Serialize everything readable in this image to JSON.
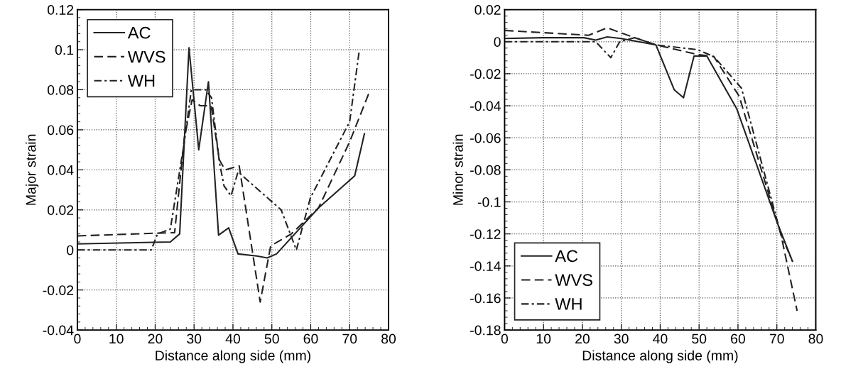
{
  "chart_data": [
    {
      "type": "line",
      "xlabel": "Distance along side (mm)",
      "ylabel": "Major strain",
      "xlim": [
        0,
        80
      ],
      "xticks": [
        0,
        10,
        20,
        30,
        40,
        50,
        60,
        70,
        80
      ],
      "ylim": [
        -0.04,
        0.12
      ],
      "yticks": [
        -0.04,
        -0.02,
        0,
        0.02,
        0.04,
        0.06,
        0.08,
        {
          "value": 0.1,
          "label": "0.1"
        },
        0.12
      ],
      "grid": true,
      "legend": "top left",
      "series": [
        {
          "name": "AC",
          "color": "#222222",
          "line_style": "solid",
          "x": [
            0,
            23.9,
            26.3,
            28.7,
            31.2,
            33.7,
            36.3,
            38.9,
            41.3,
            46.1,
            48.8,
            51.2,
            62,
            71.3,
            73.8
          ],
          "values": [
            0.003,
            0.004,
            0.008,
            0.101,
            0.05,
            0.084,
            0.0074,
            0.011,
            -0.002,
            -0.003,
            -0.004,
            -0.002,
            0.021,
            0.037,
            0.058
          ]
        },
        {
          "name": "WVS",
          "color": "#222222",
          "line_style": "dashed",
          "x": [
            0,
            23.9,
            25,
            27.5,
            29.5,
            31.6,
            34.4,
            36.5,
            38,
            41.6,
            47,
            49.7,
            55,
            62,
            70,
            74.9
          ],
          "values": [
            0.007,
            0.0086,
            0.0086,
            0.056,
            0.075,
            0.072,
            0.072,
            0.045,
            0.04,
            0.042,
            -0.026,
            0.002,
            0.008,
            0.021,
            0.054,
            0.078
          ]
        },
        {
          "name": "WH",
          "color": "#222222",
          "line_style": "dashdot",
          "x": [
            0,
            19,
            20.6,
            23.9,
            27.5,
            29.3,
            33,
            34.5,
            36.5,
            37.7,
            39.5,
            41.3,
            52.4,
            56.3,
            59.9,
            70,
            72.5
          ],
          "values": [
            0,
            0,
            0.008,
            0.0104,
            0.054,
            0.08,
            0.08,
            0.076,
            0.044,
            0.032,
            0.027,
            0.039,
            0.02,
            0,
            0.026,
            0.064,
            0.1
          ]
        }
      ]
    },
    {
      "type": "line",
      "xlabel": "Distance along side (mm)",
      "ylabel": "Minor strain",
      "xlim": [
        0,
        80
      ],
      "xticks": [
        0,
        10,
        20,
        30,
        40,
        50,
        60,
        70,
        80
      ],
      "ylim": [
        -0.18,
        0.02
      ],
      "yticks": [
        -0.18,
        -0.16,
        -0.14,
        -0.12,
        {
          "value": -0.1,
          "label": "-0.1"
        },
        -0.08,
        -0.06,
        -0.04,
        -0.02,
        0,
        0.02
      ],
      "grid": true,
      "legend": "bottom left",
      "series": [
        {
          "name": "AC",
          "color": "#222222",
          "line_style": "solid",
          "x": [
            0,
            9.7,
            20.4,
            23.4,
            26.4,
            29.9,
            38.9,
            43.6,
            46,
            48.7,
            52,
            59.7,
            70.1,
            74
          ],
          "values": [
            0.002,
            0.0025,
            0.0025,
            0.001,
            0.003,
            0.002,
            -0.002,
            -0.03,
            -0.035,
            -0.009,
            -0.009,
            -0.042,
            -0.113,
            -0.137
          ]
        },
        {
          "name": "WVS",
          "color": "#222222",
          "line_style": "dashed",
          "x": [
            0,
            21.6,
            26.4,
            29.9,
            38.9,
            49.6,
            53.8,
            60.3,
            71,
            75.2
          ],
          "values": [
            0.007,
            0.004,
            0.0087,
            0.0055,
            -0.002,
            -0.008,
            -0.0093,
            -0.034,
            -0.12,
            -0.168
          ]
        },
        {
          "name": "WH",
          "color": "#222222",
          "line_style": "dashdot",
          "x": [
            0,
            23.4,
            27.3,
            29.6,
            33.5,
            38.9,
            49.6,
            53.8,
            60.9,
            71,
            74
          ],
          "values": [
            0,
            0,
            -0.01,
            0,
            0.0025,
            -0.002,
            -0.005,
            -0.0093,
            -0.029,
            -0.12,
            -0.137
          ]
        }
      ]
    }
  ]
}
